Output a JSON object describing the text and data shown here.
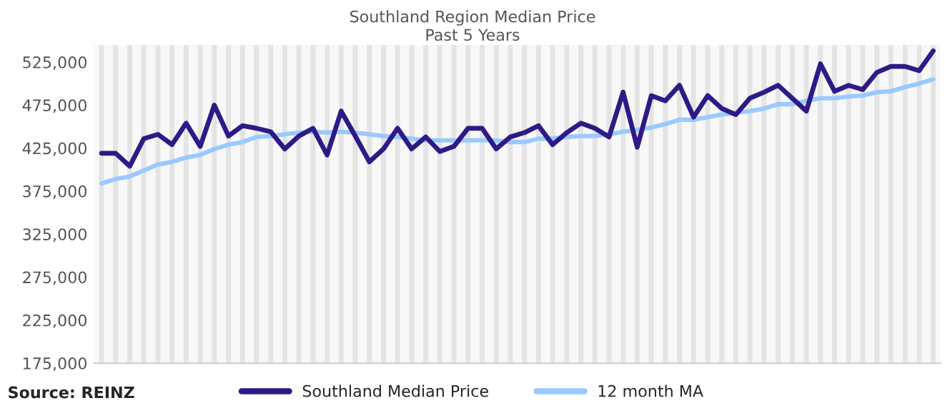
{
  "chart_data": {
    "type": "line",
    "title": "Southland Region Median Price",
    "subtitle": "Past 5 Years",
    "categories": [
      null,
      null,
      null,
      null,
      null,
      null,
      null,
      null,
      null,
      null,
      null,
      null,
      null,
      null,
      null,
      null,
      null,
      null,
      null,
      null,
      null,
      null,
      null,
      null,
      null,
      null,
      null,
      null,
      null,
      null,
      null,
      null,
      null,
      null,
      null,
      null,
      null,
      null,
      null,
      null,
      null,
      null,
      null,
      null,
      null,
      null,
      null,
      null,
      null,
      null,
      null,
      null,
      null,
      null,
      null,
      null,
      null,
      null,
      null,
      null
    ],
    "series": [
      {
        "name": "Southland Median Price",
        "color": "#2e1a87",
        "values": [
          419000,
          419000,
          404000,
          436000,
          441000,
          429000,
          454000,
          427000,
          475000,
          439000,
          451000,
          448000,
          444000,
          424000,
          439000,
          448000,
          417000,
          468000,
          439000,
          409000,
          424000,
          448000,
          424000,
          438000,
          421000,
          427000,
          448000,
          448000,
          424000,
          438000,
          443000,
          451000,
          429000,
          443000,
          454000,
          448000,
          438000,
          490000,
          426000,
          486000,
          480000,
          498000,
          461000,
          486000,
          471000,
          464000,
          483000,
          490000,
          498000,
          483000,
          468000,
          523000,
          491000,
          498000,
          493000,
          513000,
          520000,
          520000,
          515000,
          538000
        ]
      },
      {
        "name": "12 month MA",
        "color": "#99c9ff",
        "values": [
          384000,
          389000,
          392000,
          399000,
          406000,
          409000,
          414000,
          417000,
          424000,
          429000,
          432000,
          438000,
          439000,
          441000,
          443000,
          444000,
          443000,
          444000,
          443000,
          441000,
          439000,
          438000,
          436000,
          434000,
          434000,
          434000,
          434000,
          434000,
          434000,
          432000,
          432000,
          436000,
          436000,
          438000,
          439000,
          439000,
          441000,
          444000,
          446000,
          449000,
          453000,
          458000,
          458000,
          461000,
          464000,
          466000,
          468000,
          471000,
          476000,
          476000,
          480000,
          483000,
          483000,
          485000,
          486000,
          490000,
          491000,
          496000,
          500000,
          505000
        ]
      }
    ],
    "ylim": [
      175000,
      545000
    ],
    "yticks": [
      {
        "value": 175000,
        "label": "175,000"
      },
      {
        "value": 225000,
        "label": "225,000"
      },
      {
        "value": 275000,
        "label": "275,000"
      },
      {
        "value": 325000,
        "label": "325,000"
      },
      {
        "value": 375000,
        "label": "375,000"
      },
      {
        "value": 425000,
        "label": "425,000"
      },
      {
        "value": 475000,
        "label": "475,000"
      },
      {
        "value": 525000,
        "label": "525,000"
      }
    ],
    "tick_labels": "y",
    "grid": "x",
    "legend": "bottom",
    "marker": "none",
    "line_style": "solid",
    "annotations": [
      "Source: REINZ"
    ]
  }
}
